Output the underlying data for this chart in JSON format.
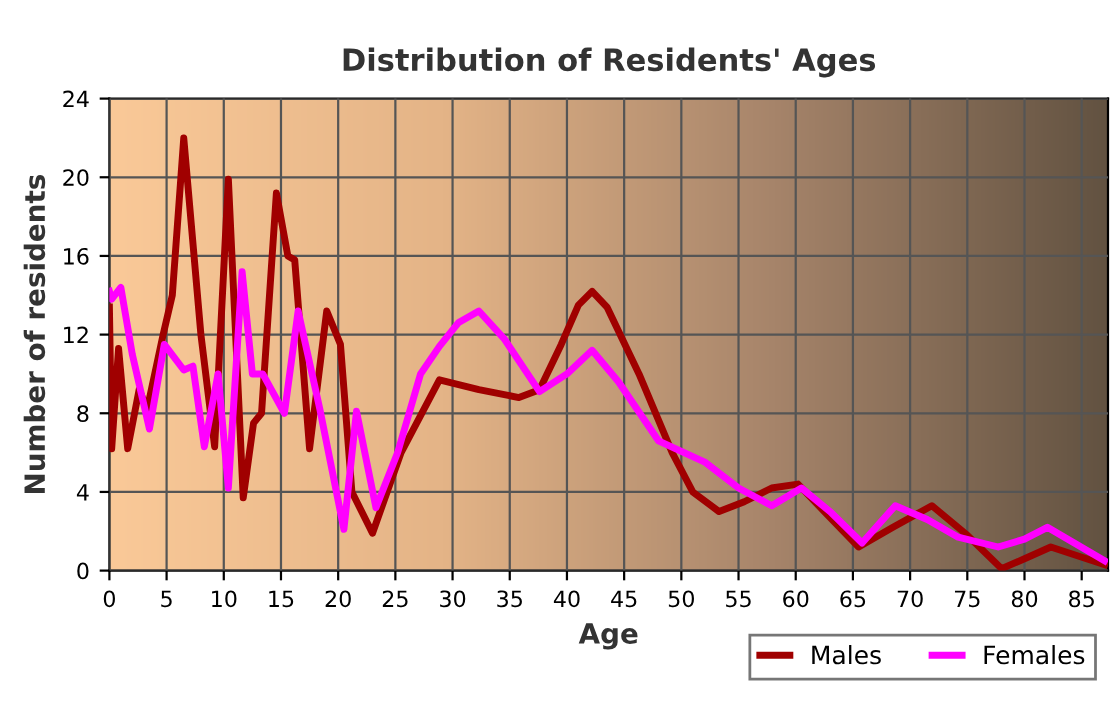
{
  "chart_data": {
    "type": "line",
    "title": "Distribution of Residents' Ages",
    "xlabel": "Age",
    "ylabel": "Number of residents",
    "xlim": [
      0,
      87.3
    ],
    "xticks": [
      0,
      5,
      10,
      15,
      20,
      25,
      30,
      35,
      40,
      45,
      50,
      55,
      60,
      65,
      70,
      75,
      80,
      85
    ],
    "ylim": [
      0,
      24
    ],
    "yticks": [
      0,
      4,
      8,
      12,
      16,
      20,
      24
    ],
    "grid": true,
    "legend": "bottom right",
    "marker": "none",
    "line_style": "solid",
    "series": [
      {
        "name": "Males",
        "color": "#a00000",
        "x": [
          0,
          0.2,
          0.8,
          1.6,
          2.6,
          3.3,
          4.7,
          5.5,
          6.5,
          8,
          9.2,
          10.4,
          11.7,
          12.6,
          13.3,
          14.6,
          15.6,
          16.2,
          17.5,
          19,
          20.2,
          21.2,
          23,
          25.5,
          28.85,
          32.3,
          35.8,
          37.6,
          39.5,
          41,
          42.2,
          43.5,
          46.3,
          49.2,
          51,
          53.3,
          55.5,
          57.9,
          60.2,
          62.5,
          65.5,
          68.5,
          71.9,
          75,
          78,
          80,
          82.3,
          87
        ],
        "values": [
          13.4,
          6.2,
          11.3,
          6.2,
          9.2,
          8.2,
          12,
          14,
          22,
          12,
          6.3,
          19.9,
          3.7,
          7.5,
          8,
          19.2,
          16,
          15.8,
          6.2,
          13.2,
          11.5,
          4,
          1.9,
          6,
          9.7,
          9.2,
          8.8,
          9.2,
          11.5,
          13.5,
          14.2,
          13.4,
          10,
          6,
          4,
          3,
          3.5,
          4.2,
          4.4,
          3,
          1.2,
          2.2,
          3.3,
          1.8,
          0.1,
          0.6,
          1.2,
          0.3
        ]
      },
      {
        "name": "Females",
        "color": "#ff00ff",
        "x": [
          0,
          0.2,
          1,
          2,
          3.5,
          4.8,
          6.5,
          7.3,
          8.3,
          9.5,
          10.4,
          11.6,
          12.5,
          13.4,
          15.3,
          16.5,
          18.4,
          20.5,
          21.6,
          23.3,
          25.2,
          27.2,
          28.85,
          30.5,
          32.3,
          34.5,
          37.6,
          40,
          42.2,
          44.5,
          48,
          52.1,
          55,
          57.9,
          60.5,
          63,
          65.8,
          68.7,
          71.5,
          74.2,
          77.7,
          80,
          82,
          87
        ],
        "values": [
          14.2,
          13.8,
          14.4,
          11,
          7.2,
          11.5,
          10.2,
          10.4,
          6.3,
          10,
          4.2,
          15.2,
          10,
          10,
          8,
          13.2,
          8.2,
          2.1,
          8.1,
          3.2,
          6,
          10,
          11.4,
          12.6,
          13.2,
          11.8,
          9.1,
          10,
          11.2,
          9.6,
          6.6,
          5.5,
          4.2,
          3.3,
          4.2,
          3,
          1.4,
          3.3,
          2.6,
          1.7,
          1.2,
          1.6,
          2.2,
          0.5
        ]
      }
    ]
  }
}
